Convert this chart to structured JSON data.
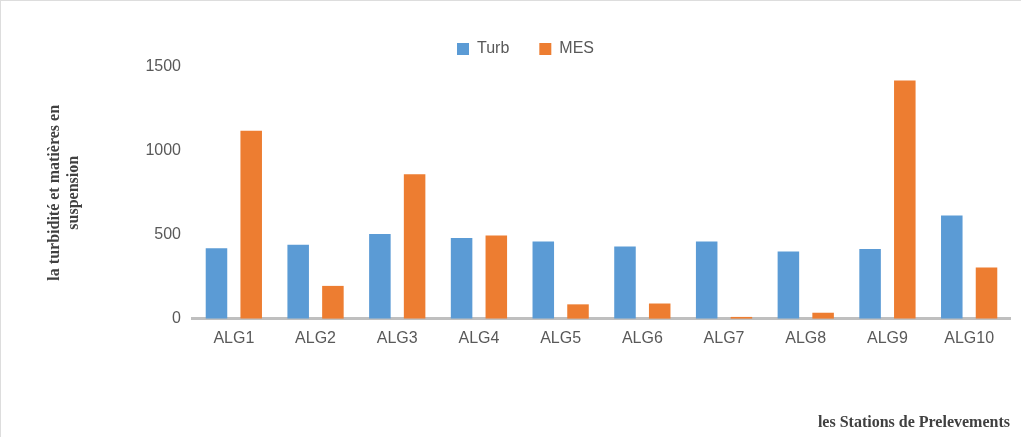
{
  "chart_data": {
    "type": "bar",
    "categories": [
      "ALG1",
      "ALG2",
      "ALG3",
      "ALG4",
      "ALG5",
      "ALG6",
      "ALG7",
      "ALG8",
      "ALG9",
      "ALG10"
    ],
    "series": [
      {
        "name": "Turb",
        "color": "#5b9bd5",
        "values": [
          420,
          440,
          505,
          480,
          460,
          430,
          460,
          400,
          415,
          615
        ]
      },
      {
        "name": "MES",
        "color": "#ed7d31",
        "values": [
          1120,
          195,
          860,
          495,
          85,
          90,
          10,
          35,
          1420,
          305
        ]
      }
    ],
    "xlabel": "les Stations de Prelevements",
    "ylabel": "la turbidité et matières en suspension",
    "ylim": [
      0,
      1500
    ],
    "yticks": [
      0,
      500,
      1000,
      1500
    ],
    "grid": false,
    "legend": "top"
  }
}
